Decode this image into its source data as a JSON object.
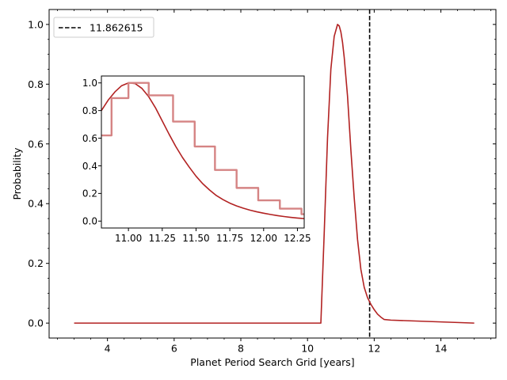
{
  "chart_data": [
    {
      "type": "line",
      "title": "",
      "xlabel": "Planet Period Search Grid [years]",
      "ylabel": "Probability",
      "xlim": [
        2.25,
        15.65
      ],
      "ylim": [
        -0.05,
        1.05
      ],
      "xticks": [
        4,
        6,
        8,
        10,
        12,
        14
      ],
      "yticks": [
        0.0,
        0.2,
        0.4,
        0.6,
        0.8,
        1.0
      ],
      "xtick_labels": [
        "4",
        "6",
        "8",
        "10",
        "12",
        "14"
      ],
      "ytick_labels": [
        "0.0",
        "0.2",
        "0.4",
        "0.6",
        "0.8",
        "1.0"
      ],
      "grid": false,
      "legend": {
        "position": "top-left",
        "entries": [
          {
            "label": "11.862615",
            "style": "dashed",
            "color": "#000000"
          }
        ]
      },
      "reference_line": {
        "x": 11.862615,
        "label": "11.862615",
        "style": "dashed",
        "color": "#000000"
      },
      "series": [
        {
          "color": "#b22222",
          "x": [
            3.0,
            6.0,
            9.0,
            10.3,
            10.4,
            10.5,
            10.6,
            10.7,
            10.8,
            10.9,
            10.95,
            11.0,
            11.05,
            11.1,
            11.2,
            11.3,
            11.4,
            11.5,
            11.6,
            11.7,
            11.8,
            11.9,
            12.0,
            12.1,
            12.2,
            12.3,
            12.5,
            13.0,
            13.5,
            14.0,
            14.5,
            15.0
          ],
          "y": [
            0.0,
            0.0,
            0.0,
            0.0,
            0.0,
            0.3,
            0.62,
            0.85,
            0.96,
            1.0,
            0.995,
            0.975,
            0.94,
            0.89,
            0.76,
            0.58,
            0.42,
            0.28,
            0.18,
            0.12,
            0.085,
            0.063,
            0.045,
            0.03,
            0.02,
            0.012,
            0.01,
            0.008,
            0.006,
            0.004,
            0.002,
            0.0
          ]
        }
      ]
    },
    {
      "type": "line",
      "title": "",
      "xlabel": "",
      "ylabel": "",
      "xlim": [
        10.8,
        12.3
      ],
      "ylim": [
        -0.05,
        1.05
      ],
      "xticks": [
        11.0,
        11.25,
        11.5,
        11.75,
        12.0,
        12.25
      ],
      "yticks": [
        0.0,
        0.2,
        0.4,
        0.6,
        0.8,
        1.0
      ],
      "xtick_labels": [
        "11.00",
        "11.25",
        "11.50",
        "11.75",
        "12.00",
        "12.25"
      ],
      "ytick_labels": [
        "0.0",
        "0.2",
        "0.4",
        "0.6",
        "0.8",
        "1.0"
      ],
      "grid": false,
      "legend": null,
      "series": [
        {
          "color": "#b22222",
          "style": "line",
          "x": [
            10.8,
            10.85,
            10.9,
            10.95,
            11.0,
            11.05,
            11.1,
            11.15,
            11.2,
            11.25,
            11.3,
            11.35,
            11.4,
            11.45,
            11.5,
            11.55,
            11.6,
            11.65,
            11.7,
            11.75,
            11.8,
            11.85,
            11.9,
            11.95,
            12.0,
            12.05,
            12.1,
            12.15,
            12.2,
            12.25,
            12.3
          ],
          "y": [
            0.8,
            0.875,
            0.935,
            0.98,
            1.0,
            0.995,
            0.96,
            0.9,
            0.82,
            0.725,
            0.63,
            0.54,
            0.46,
            0.39,
            0.325,
            0.27,
            0.225,
            0.185,
            0.155,
            0.13,
            0.11,
            0.093,
            0.079,
            0.067,
            0.057,
            0.048,
            0.04,
            0.033,
            0.027,
            0.022,
            0.018
          ]
        },
        {
          "color": "#d58484",
          "style": "step",
          "x": [
            10.8,
            10.875,
            11.0,
            11.15,
            11.33,
            11.49,
            11.64,
            11.8,
            11.96,
            12.12,
            12.28,
            12.3
          ],
          "y": [
            0.62,
            0.89,
            1.0,
            0.91,
            0.72,
            0.54,
            0.37,
            0.24,
            0.15,
            0.09,
            0.05,
            0.05
          ]
        }
      ]
    }
  ]
}
